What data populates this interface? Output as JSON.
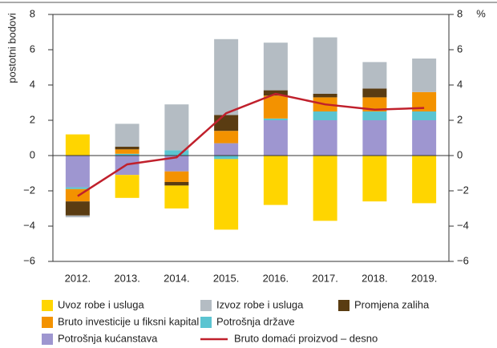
{
  "chart_data": {
    "type": "bar",
    "stacked": true,
    "y_label": "postotni bodovi",
    "y2_label": "%",
    "categories": [
      "2012.",
      "2013.",
      "2014.",
      "2015.",
      "2016.",
      "2017.",
      "2018.",
      "2019."
    ],
    "series": [
      {
        "name": "Uvoz robe i usluga",
        "color": "#ffd500",
        "values": [
          1.2,
          -1.3,
          -1.3,
          -4.0,
          -2.8,
          -3.7,
          -2.6,
          -2.7
        ]
      },
      {
        "name": "Izvoz robe i usluga",
        "color": "#b4bcc3",
        "values": [
          -0.1,
          1.3,
          2.6,
          4.3,
          2.7,
          3.2,
          1.5,
          1.9
        ]
      },
      {
        "name": "Promjena zaliha",
        "color": "#5a3c12",
        "values": [
          -0.8,
          0.15,
          -0.2,
          0.9,
          0.3,
          0.2,
          0.5,
          0
        ]
      },
      {
        "name": "Bruto investicije u fiksni kapital",
        "color": "#f39200",
        "values": [
          -0.7,
          0.25,
          -0.6,
          0.7,
          1.3,
          0.8,
          0.8,
          1.1
        ]
      },
      {
        "name": "Potrošnja države",
        "color": "#5bc4d1",
        "values": [
          -0.1,
          0.1,
          0.3,
          -0.2,
          0.1,
          0.5,
          0.5,
          0.5
        ]
      },
      {
        "name": "Potrošnja kućanstava",
        "color": "#9e96d0",
        "values": [
          -1.8,
          -1.1,
          -0.9,
          0.7,
          2.0,
          2.0,
          2.0,
          2.0
        ]
      },
      {
        "name": "Bruto domaći proizvod – desno",
        "color": "#c0202c",
        "type": "line",
        "axis": "y2",
        "values": [
          -2.3,
          -0.5,
          -0.1,
          2.4,
          3.5,
          2.9,
          2.6,
          2.7
        ]
      }
    ],
    "ylim": [
      -6,
      8
    ],
    "yticks": [
      8,
      6,
      4,
      2,
      0,
      {
        "value": -2,
        "label": "−2"
      },
      {
        "value": -4,
        "label": "−4"
      },
      {
        "value": -6,
        "label": "−6"
      }
    ],
    "y2lim": [
      -6,
      8
    ],
    "y2ticks": [
      8,
      6,
      4,
      2,
      0,
      {
        "value": -2,
        "label": "−2"
      },
      {
        "value": -4,
        "label": "−4"
      },
      {
        "value": -6,
        "label": "−6"
      }
    ]
  }
}
